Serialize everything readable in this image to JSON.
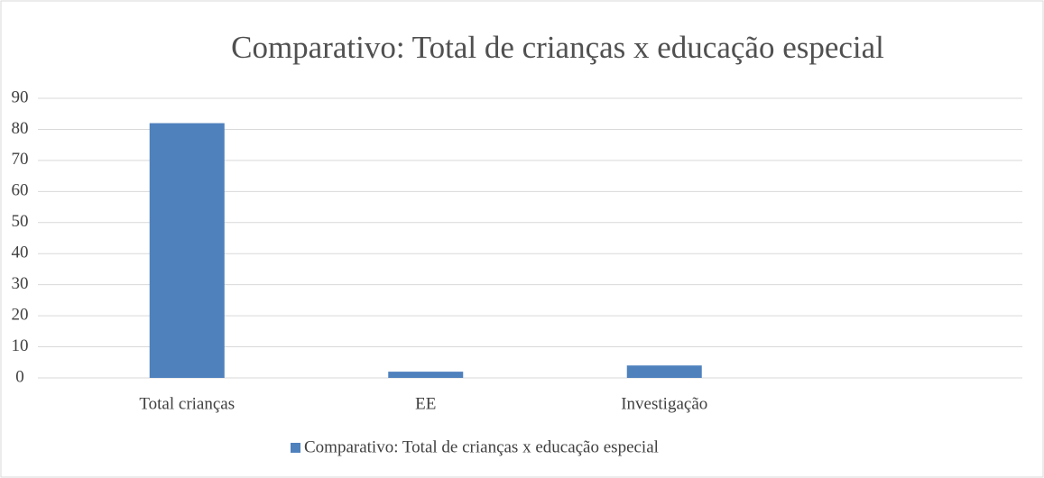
{
  "chart_data": {
    "type": "bar",
    "title": "Comparativo: Total de crianças x educação especial",
    "categories": [
      "Total crianças",
      "EE",
      "Investigação",
      null
    ],
    "series": [
      {
        "name": "Comparativo: Total de crianças x educação especial",
        "color": "#4f81bd",
        "values": [
          82,
          2,
          4,
          null
        ]
      }
    ],
    "ylim": [
      0,
      90
    ],
    "yticks": [
      0,
      10,
      20,
      30,
      40,
      50,
      60,
      70,
      80,
      90
    ],
    "grid": true,
    "legend": "bottom"
  }
}
